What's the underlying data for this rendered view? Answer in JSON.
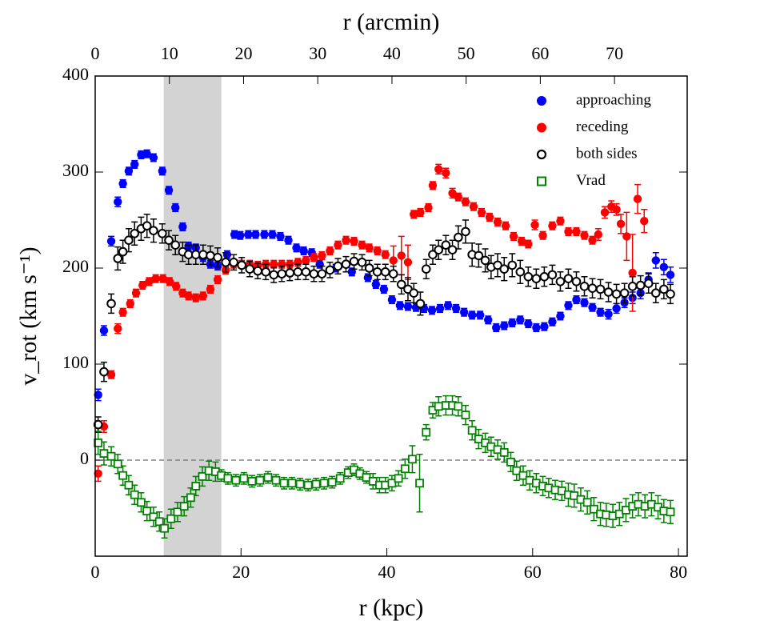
{
  "chart_data": {
    "type": "scatter",
    "xlabel": "r (kpc)",
    "x2label": "r (arcmin)",
    "ylabel": "v_rot (km s⁻¹)",
    "xlim": [
      0,
      81.2
    ],
    "xticks": [
      0,
      20,
      40,
      60,
      80
    ],
    "x2lim": [
      0,
      79.8
    ],
    "x2ticks": [
      0,
      10,
      20,
      30,
      40,
      50,
      60,
      70
    ],
    "ylim": [
      -100,
      400
    ],
    "yticks": [
      0,
      100,
      200,
      300,
      400
    ],
    "shade": [
      9.4,
      17.3
    ],
    "hline": 0,
    "legend": "upper right",
    "series": [
      {
        "name": "approaching",
        "color": "#0000ff",
        "marker": "filled-circle",
        "x": [
          0.4,
          1.2,
          2.2,
          3.1,
          3.8,
          4.6,
          5.4,
          6.3,
          7.1,
          8,
          9.2,
          10.1,
          11,
          12,
          12.8,
          13.8,
          14.8,
          15.8,
          16.8,
          18.1,
          19.1,
          19.9,
          21,
          22,
          23.2,
          24.3,
          25.4,
          26.5,
          27.6,
          28.6,
          29.7,
          30.8,
          33,
          35.2,
          37.4,
          38.5,
          39.6,
          40.7,
          41.8,
          42.9,
          44,
          45.1,
          46.2,
          47.3,
          48.4,
          49.5,
          50.6,
          51.7,
          52.8,
          53.9,
          55,
          56.1,
          57.2,
          58.3,
          59.4,
          60.5,
          61.6,
          62.7,
          63.8,
          64.9,
          66,
          67.1,
          68.2,
          69.3,
          70.4,
          71.5,
          72.6,
          73.7,
          74.8,
          75.9,
          76.9,
          78,
          78.9
        ],
        "values": [
          68,
          135,
          228,
          269,
          288,
          301,
          308,
          318,
          319,
          315,
          301,
          281,
          263,
          243,
          223,
          221,
          211,
          204,
          202,
          214,
          235,
          234,
          235,
          235,
          235,
          235,
          233,
          229,
          221,
          218,
          216,
          204,
          200,
          196,
          190,
          183,
          178,
          167,
          161,
          160,
          159,
          158,
          156,
          158,
          161,
          158,
          154,
          151,
          151,
          146,
          138,
          140,
          143,
          146,
          142,
          138,
          139,
          144,
          150,
          161,
          167,
          164,
          159,
          154,
          152,
          158,
          164,
          169,
          174,
          188,
          208,
          201,
          193
        ],
        "errors": [
          6,
          5,
          5,
          5,
          4,
          4,
          4,
          4,
          4,
          4,
          4,
          4,
          4,
          4,
          4,
          4,
          4,
          4,
          4,
          4,
          4,
          4,
          4,
          4,
          4,
          4,
          4,
          4,
          4,
          4,
          4,
          4,
          4,
          4,
          4,
          4,
          4,
          4,
          4,
          4,
          4,
          4,
          4,
          4,
          4,
          4,
          4,
          4,
          4,
          4,
          4,
          4,
          4,
          4,
          4,
          4,
          4,
          4,
          4,
          4,
          4,
          4,
          4,
          4,
          5,
          5,
          5,
          6,
          6,
          7,
          8,
          8,
          8
        ]
      },
      {
        "name": "receding",
        "color": "#ff0000",
        "marker": "filled-circle",
        "x": [
          0.4,
          1.2,
          2.2,
          3.1,
          3.8,
          4.8,
          5.6,
          6.5,
          7.4,
          8.3,
          9.3,
          10.2,
          11.1,
          12,
          12.8,
          13.8,
          14.8,
          15.8,
          16.8,
          17.9,
          19,
          20.1,
          21.2,
          22.3,
          23.4,
          24.5,
          25.6,
          26.7,
          27.8,
          28.9,
          30,
          31.1,
          32.2,
          33.3,
          34.4,
          35.5,
          36.6,
          37.6,
          38.7,
          39.8,
          40.9,
          42,
          42.9,
          43.7,
          44.6,
          45.7,
          46.3,
          47.1,
          48.1,
          49,
          49.8,
          50.8,
          51.9,
          53,
          54.1,
          55.2,
          56.3,
          57.4,
          58.5,
          59.4,
          60.3,
          61.4,
          62.7,
          63.8,
          64.9,
          66,
          67.1,
          68.2,
          69,
          69.9,
          70.8,
          71.5,
          72.1,
          72.9,
          73.7,
          74.4,
          75.3
        ],
        "values": [
          -14,
          35,
          89,
          137,
          154,
          163,
          174,
          182,
          186,
          189,
          189,
          186,
          181,
          174,
          171,
          169,
          171,
          178,
          188,
          198,
          204,
          204,
          204,
          203,
          204,
          204,
          204,
          204,
          206,
          208,
          211,
          213,
          218,
          224,
          229,
          228,
          224,
          221,
          218,
          214,
          208,
          213,
          206,
          256,
          258,
          263,
          286,
          303,
          299,
          278,
          274,
          269,
          264,
          258,
          253,
          248,
          244,
          233,
          228,
          225,
          245,
          234,
          244,
          249,
          238,
          238,
          234,
          229,
          235,
          258,
          264,
          261,
          246,
          233,
          195,
          272,
          249
        ],
        "errors": [
          8,
          6,
          4,
          5,
          4,
          4,
          4,
          4,
          4,
          4,
          4,
          4,
          4,
          4,
          4,
          4,
          4,
          4,
          4,
          4,
          4,
          4,
          4,
          4,
          4,
          4,
          4,
          4,
          4,
          4,
          4,
          4,
          4,
          4,
          4,
          4,
          4,
          4,
          4,
          4,
          15,
          20,
          18,
          4,
          4,
          4,
          4,
          5,
          5,
          5,
          4,
          4,
          4,
          4,
          4,
          4,
          4,
          4,
          4,
          4,
          5,
          4,
          4,
          4,
          4,
          4,
          4,
          4,
          6,
          6,
          6,
          6,
          10,
          25,
          40,
          15,
          12
        ]
      },
      {
        "name": "both sides",
        "color": "#000000",
        "marker": "open-circle",
        "x": [
          0.4,
          1.2,
          2.2,
          3.1,
          3.8,
          4.6,
          5.4,
          6.3,
          7.1,
          8,
          9.2,
          10.1,
          11,
          12,
          12.8,
          13.8,
          14.8,
          15.8,
          16.8,
          17.9,
          19,
          20.1,
          21.2,
          22.3,
          23.4,
          24.5,
          25.6,
          26.7,
          27.8,
          28.9,
          30,
          31.1,
          32.2,
          33.3,
          34.4,
          35.5,
          36.6,
          37.6,
          38.7,
          39.8,
          40.9,
          42,
          42.9,
          43.7,
          44.6,
          45.4,
          46.3,
          47.1,
          48.1,
          49,
          49.8,
          50.8,
          51.7,
          52.6,
          53.5,
          54.3,
          55.2,
          56.1,
          57.2,
          58.3,
          59.4,
          60.5,
          61.6,
          62.7,
          63.8,
          64.9,
          66,
          67.1,
          68.2,
          69.3,
          70.4,
          71.5,
          72.6,
          73.7,
          74.8,
          75.9,
          76.9,
          78,
          78.9
        ],
        "values": [
          37,
          92,
          163,
          210,
          217,
          229,
          236,
          241,
          244,
          239,
          236,
          229,
          224,
          217,
          214,
          214,
          214,
          213,
          211,
          206,
          206,
          203,
          199,
          197,
          196,
          193,
          194,
          195,
          196,
          196,
          194,
          194,
          198,
          202,
          204,
          207,
          206,
          200,
          196,
          196,
          194,
          183,
          178,
          174,
          163,
          199,
          214,
          219,
          224,
          219,
          232,
          238,
          214,
          213,
          208,
          201,
          203,
          199,
          203,
          196,
          191,
          189,
          191,
          193,
          186,
          189,
          186,
          181,
          179,
          178,
          175,
          173,
          174,
          181,
          182,
          184,
          174,
          178,
          173
        ],
        "errors": [
          8,
          10,
          10,
          12,
          12,
          12,
          12,
          12,
          12,
          12,
          10,
          10,
          10,
          10,
          10,
          10,
          10,
          10,
          10,
          10,
          8,
          8,
          8,
          8,
          8,
          8,
          8,
          8,
          8,
          8,
          8,
          8,
          8,
          8,
          8,
          8,
          8,
          8,
          8,
          8,
          8,
          10,
          12,
          10,
          12,
          10,
          10,
          10,
          10,
          10,
          12,
          12,
          12,
          12,
          12,
          12,
          12,
          12,
          12,
          12,
          10,
          10,
          10,
          10,
          10,
          10,
          10,
          10,
          10,
          10,
          10,
          10,
          10,
          10,
          10,
          10,
          10,
          10,
          10
        ]
      },
      {
        "name": "Vrad",
        "color": "#008000",
        "marker": "open-square",
        "x": [
          0.4,
          1.2,
          2.2,
          3.1,
          3.8,
          4.6,
          5.4,
          6.3,
          7.1,
          8,
          8.8,
          9.5,
          10.4,
          11.3,
          12.2,
          13.1,
          13.8,
          14.7,
          15.6,
          16.5,
          17.3,
          18.2,
          19.3,
          20.4,
          21.5,
          22.6,
          23.7,
          24.8,
          25.9,
          27,
          28.1,
          29.2,
          30.3,
          31.4,
          32.5,
          33.6,
          34.7,
          35.5,
          36.3,
          37.2,
          38.1,
          39,
          39.8,
          40.7,
          41.6,
          42.5,
          43.5,
          44.5,
          45.4,
          46.3,
          47.1,
          48.1,
          49,
          49.8,
          50.8,
          51.7,
          52.6,
          53.5,
          54.3,
          55.2,
          56.1,
          57,
          57.8,
          58.7,
          59.6,
          60.5,
          61.4,
          62.2,
          63.1,
          64,
          64.9,
          65.7,
          66.6,
          67.5,
          68.4,
          69.3,
          70.1,
          71,
          71.9,
          72.8,
          73.7,
          74.5,
          75.4,
          76.3,
          77.2,
          78,
          78.9
        ],
        "values": [
          18,
          7,
          4,
          -4,
          -16,
          -26,
          -36,
          -44,
          -53,
          -59,
          -64,
          -71,
          -61,
          -54,
          -48,
          -39,
          -27,
          -17,
          -11,
          -12,
          -16,
          -19,
          -21,
          -19,
          -22,
          -21,
          -18,
          -21,
          -24,
          -24,
          -25,
          -26,
          -25,
          -24,
          -23,
          -19,
          -13,
          -10,
          -14,
          -18,
          -22,
          -26,
          -26,
          -24,
          -19,
          -9,
          1,
          -24,
          29,
          52,
          56,
          57,
          57,
          56,
          47,
          31,
          22,
          18,
          14,
          11,
          8,
          -2,
          -11,
          -16,
          -21,
          -24,
          -27,
          -29,
          -31,
          -32,
          -36,
          -37,
          -41,
          -44,
          -51,
          -56,
          -57,
          -58,
          -56,
          -52,
          -48,
          -46,
          -48,
          -46,
          -49,
          -53,
          -54
        ],
        "errors": [
          12,
          12,
          10,
          10,
          10,
          10,
          10,
          10,
          10,
          10,
          10,
          10,
          10,
          10,
          10,
          10,
          10,
          10,
          10,
          10,
          6,
          6,
          6,
          6,
          6,
          6,
          6,
          6,
          6,
          6,
          6,
          6,
          6,
          6,
          6,
          6,
          6,
          6,
          6,
          6,
          8,
          8,
          8,
          8,
          8,
          10,
          14,
          30,
          8,
          8,
          10,
          10,
          10,
          10,
          10,
          10,
          10,
          10,
          10,
          10,
          10,
          10,
          10,
          10,
          10,
          10,
          10,
          10,
          10,
          10,
          12,
          12,
          12,
          12,
          12,
          12,
          12,
          12,
          12,
          12,
          12,
          12,
          12,
          12,
          12,
          12,
          12
        ]
      }
    ]
  }
}
